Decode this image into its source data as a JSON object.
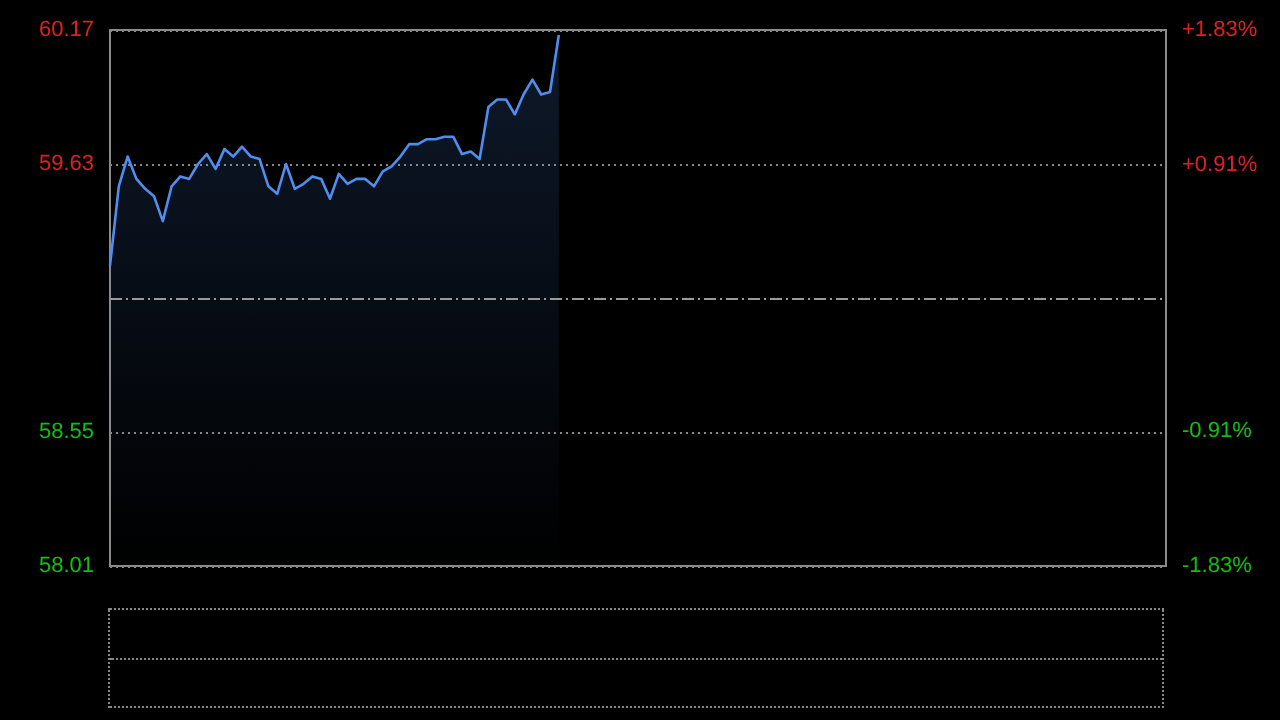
{
  "chart_data": {
    "type": "area",
    "categories": [
      null,
      null,
      null,
      null,
      null,
      null,
      null,
      null,
      null,
      null,
      null,
      null,
      null,
      null,
      null,
      null,
      null,
      null,
      null,
      null,
      null,
      null,
      null,
      null,
      null,
      null,
      null,
      null,
      null,
      null,
      null,
      null,
      null,
      null,
      null,
      null,
      null,
      null,
      null,
      null,
      null,
      null,
      null,
      null,
      null,
      null,
      null,
      null,
      null,
      null,
      null,
      null,
      null,
      null,
      null,
      null,
      null,
      null,
      null,
      null,
      null,
      null,
      null,
      null,
      null,
      null,
      null,
      null,
      null,
      null,
      null,
      null,
      null,
      null,
      null,
      null,
      null,
      null,
      null,
      null,
      null,
      null,
      null,
      null,
      null,
      null,
      null,
      null,
      null,
      null,
      null,
      null,
      null,
      null,
      null,
      null,
      null,
      null,
      null,
      null,
      null,
      null,
      null,
      null,
      null,
      null,
      null,
      null,
      null,
      null,
      null,
      null,
      null,
      null,
      null,
      null,
      null,
      null,
      null,
      null,
      null
    ],
    "series": [
      {
        "color": "#4f8ef0",
        "values": [
          59.22,
          59.54,
          59.66,
          59.57,
          59.53,
          59.5,
          59.4,
          59.54,
          59.58,
          59.57,
          59.63,
          59.67,
          59.61,
          59.69,
          59.66,
          59.7,
          59.66,
          59.65,
          59.54,
          59.51,
          59.63,
          59.53,
          59.55,
          59.58,
          59.57,
          59.49,
          59.59,
          59.55,
          59.57,
          59.57,
          59.54,
          59.6,
          59.62,
          59.66,
          59.71,
          59.71,
          59.73,
          59.73,
          59.74,
          59.74,
          59.67,
          59.68,
          59.65,
          59.86,
          59.89,
          59.89,
          59.83,
          59.91,
          59.97,
          59.91,
          59.92,
          60.15,
          null,
          null,
          null,
          null,
          null,
          null,
          null,
          null,
          null,
          null,
          null,
          null,
          null,
          null,
          null,
          null,
          null,
          null,
          null,
          null,
          null,
          null,
          null,
          null,
          null,
          null,
          null,
          null,
          null,
          null,
          null,
          null,
          null,
          null,
          null,
          null,
          null,
          null,
          null,
          null,
          null,
          null,
          null,
          null,
          null,
          null,
          null,
          null,
          null,
          null,
          null,
          null,
          null,
          null,
          null,
          null,
          null,
          null,
          null,
          null,
          null,
          null,
          null,
          null,
          null,
          null,
          null,
          null,
          null
        ]
      }
    ],
    "ylim": [
      58.01,
      60.17
    ],
    "yticks": [
      58.01,
      58.55,
      59.63,
      60.17
    ],
    "y2lim": [
      -1.83,
      1.83
    ],
    "y2ticks": [
      {
        "value": -1.83,
        "label": "-1.83%"
      },
      {
        "value": -0.91,
        "label": "-0.91%"
      },
      {
        "value": 0.91,
        "label": "+0.91%"
      },
      {
        "value": 1.83,
        "label": "+1.83%"
      }
    ],
    "ref_lines": [
      {
        "axis": "y",
        "value": 59.09,
        "color": "#9a9a9a",
        "line_style": "dashed"
      }
    ],
    "grid": "y",
    "tick_labels": "y",
    "line_style": "solid"
  }
}
